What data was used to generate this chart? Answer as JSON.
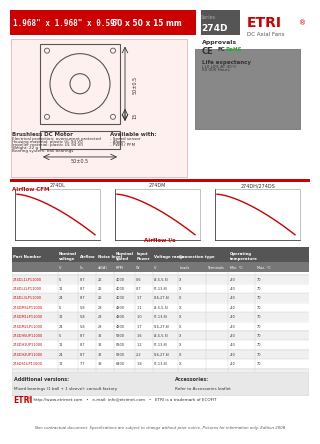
{
  "title_red": "1.968\" x 1.968\" x 0.59\"",
  "title_metric": "50 x 50 x 15 mm",
  "series": "274D",
  "brand": "ETRI",
  "subtitle": "DC Axial Fans",
  "header_bg": "#cc0000",
  "table_header_bg": "#555555",
  "table_row_bg1": "#f0f0f0",
  "table_row_bg2": "#ffffff",
  "columns": [
    "Part Number",
    "Nominal\nvoltage",
    "Airflow",
    "Noise level",
    "Nominal speed",
    "Input Power",
    "Voltage range",
    "Connection type",
    "Operating temperature"
  ],
  "col_sub": [
    "",
    "V",
    "l/s",
    "dB(A)",
    "RPM",
    "W",
    "V",
    "Leads",
    "Terminals",
    "Min. °C",
    "Max. °C"
  ],
  "rows": [
    [
      "274DL1LP11000",
      "5",
      "8.7",
      "26",
      "4000",
      "0.6",
      "(4.5-5.5)",
      "X",
      "",
      "-40",
      "70"
    ],
    [
      "274DL2LP11000",
      "12",
      "8.7",
      "26",
      "4000",
      "0.7",
      "(7-13.8)",
      "X",
      "",
      "-40",
      "70"
    ],
    [
      "274DL3LP11000",
      "24",
      "8.7",
      "26",
      "4000",
      "1.7",
      "(16-27.6)",
      "X",
      "",
      "-40",
      "70"
    ],
    [
      "274DM5LP11000",
      "5",
      "5.8",
      "28",
      "4800",
      "1.1",
      "(4.5-5.5)",
      "X",
      "",
      "-40",
      "70"
    ],
    [
      "274DM1LP11000",
      "12",
      "5.8",
      "28",
      "4800",
      "1.0",
      "(7-13.8)",
      "X",
      "",
      "-40",
      "70"
    ],
    [
      "274DM2LP11000",
      "24",
      "5.8",
      "28",
      "4800",
      "1.7",
      "(16-27.6)",
      "X",
      "",
      "-40",
      "70"
    ],
    [
      "274DH5UP11000",
      "5",
      "8.7",
      "32",
      "5800",
      "1.6",
      "(4.5-5.5)",
      "X",
      "",
      "-40",
      "70"
    ],
    [
      "274DH1UP11000",
      "12",
      "8.7",
      "32",
      "5800",
      "1.2",
      "(7-13.8)",
      "X",
      "",
      "-40",
      "70"
    ],
    [
      "274DH2UP11000",
      "24",
      "8.7",
      "32",
      "5800",
      "2.2",
      "(16-27.6)",
      "X",
      "",
      "-40",
      "70"
    ],
    [
      "274DS1UP11000",
      "12",
      "7.7",
      "38",
      "6400",
      "1.8",
      "(7-13.8)",
      "X",
      "",
      "-40",
      "70"
    ],
    [
      "274DS2LP11000",
      "24",
      "7.7",
      "38",
      "6400",
      "2.8",
      "(16-27.6)",
      "X",
      "",
      "-40",
      "70"
    ]
  ],
  "footer_additional": "Additional versions:",
  "footer_additional2": "Mixed bearings (1 ball + 1 sleeve): consult factory",
  "footer_accessories": "Accessories:",
  "footer_accessories2": "Refer to Accessories leaflet",
  "footer_url": "http://www.etrimet.com",
  "footer_email": "info@etrimet.com",
  "footer_trademark": "ETRI is a trademark of ECOFIT",
  "footer_disclaimer": "Non contractual document. Specifications are subject to change without prior notice. Pictures for information only. Edition 2008"
}
